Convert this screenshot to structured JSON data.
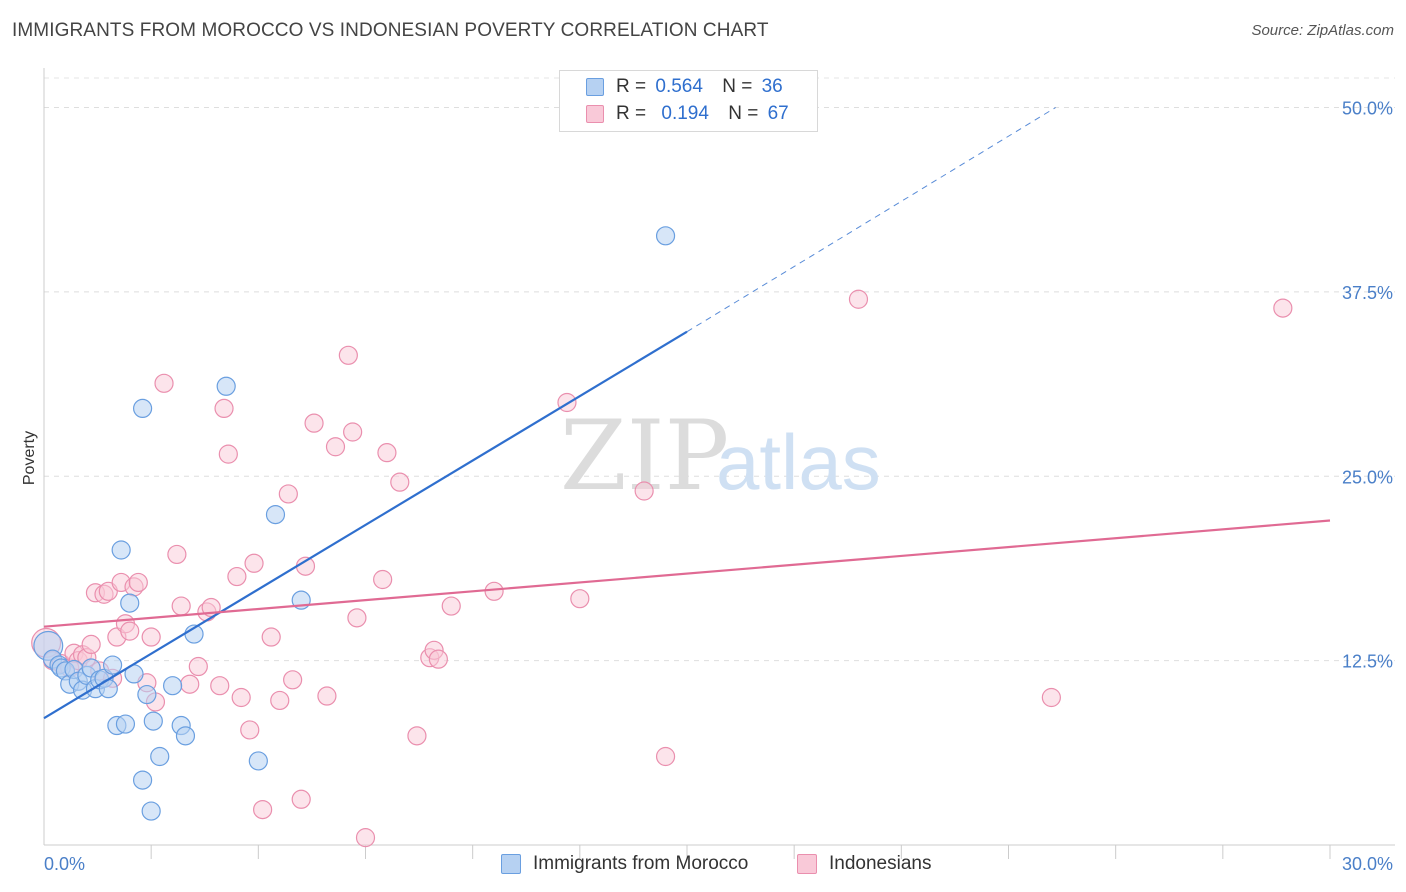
{
  "header": {
    "title": "IMMIGRANTS FROM MOROCCO VS INDONESIAN POVERTY CORRELATION CHART",
    "source": "Source: ZipAtlas.com"
  },
  "watermark": {
    "zip": "ZIP",
    "atlas": "atlas"
  },
  "legend": {
    "r_label": "R =",
    "n_label": "N =",
    "rows": [
      {
        "r": "0.564",
        "n": "36"
      },
      {
        "r": "0.194",
        "n": "67"
      }
    ]
  },
  "bottom_legend": {
    "items": [
      "Immigrants from Morocco",
      "Indonesians"
    ]
  },
  "colors": {
    "blue": "#2f6fce",
    "pink": "#e06a93",
    "blue_fill": "#b6d1f2",
    "pink_fill": "#f9c9d8",
    "tick": "#4a7fc8"
  },
  "chart_data": {
    "type": "scatter",
    "title": "IMMIGRANTS FROM MOROCCO VS INDONESIAN POVERTY CORRELATION CHART",
    "xlabel": "",
    "ylabel": "Poverty",
    "xlim": [
      0,
      30
    ],
    "ylim": [
      0,
      50
    ],
    "x_tick_labels": [
      {
        "value": 0,
        "label": "0.0%"
      },
      {
        "value": 30,
        "label": "30.0%"
      }
    ],
    "y_tick_labels": [
      {
        "value": 12.5,
        "label": "12.5%"
      },
      {
        "value": 25,
        "label": "25.0%"
      },
      {
        "value": 37.5,
        "label": "37.5%"
      },
      {
        "value": 50,
        "label": "50.0%"
      }
    ],
    "series": [
      {
        "name": "Immigrants from Morocco",
        "color": "#2f6fce",
        "R": 0.564,
        "N": 36,
        "trend": {
          "x0": 0,
          "y0": 8.6,
          "x1": 15,
          "y1": 34.8,
          "dash_to_x": 23.6,
          "dash_to_y": 50.0
        },
        "points": [
          [
            0.1,
            13.5,
            1.6
          ],
          [
            0.2,
            12.6,
            1
          ],
          [
            0.35,
            12.2,
            1
          ],
          [
            0.4,
            12.0,
            1
          ],
          [
            0.5,
            11.8,
            1
          ],
          [
            0.6,
            10.9,
            1
          ],
          [
            0.7,
            11.9,
            1
          ],
          [
            0.8,
            11.1,
            1
          ],
          [
            0.9,
            10.5,
            1
          ],
          [
            1.0,
            11.5,
            1
          ],
          [
            1.1,
            12.0,
            1
          ],
          [
            1.2,
            10.6,
            1
          ],
          [
            1.3,
            11.2,
            1
          ],
          [
            1.4,
            11.3,
            1
          ],
          [
            1.5,
            10.6,
            1
          ],
          [
            1.6,
            12.2,
            1
          ],
          [
            1.7,
            8.1,
            1
          ],
          [
            1.8,
            20.0,
            1
          ],
          [
            1.9,
            8.2,
            1
          ],
          [
            2.0,
            16.4,
            1
          ],
          [
            2.1,
            11.6,
            1
          ],
          [
            2.4,
            10.2,
            1
          ],
          [
            2.3,
            4.4,
            1
          ],
          [
            2.5,
            2.3,
            1
          ],
          [
            2.55,
            8.4,
            1
          ],
          [
            2.7,
            6.0,
            1
          ],
          [
            3.0,
            10.8,
            1
          ],
          [
            3.2,
            8.1,
            1
          ],
          [
            3.3,
            7.4,
            1
          ],
          [
            4.25,
            31.1,
            1
          ],
          [
            5.4,
            22.4,
            1
          ],
          [
            6.0,
            16.6,
            1
          ],
          [
            2.3,
            29.6,
            1
          ],
          [
            3.5,
            14.3,
            1
          ],
          [
            5.0,
            5.7,
            1
          ],
          [
            14.5,
            41.3,
            1
          ]
        ]
      },
      {
        "name": "Indonesians",
        "color": "#e06a93",
        "R": 0.194,
        "N": 67,
        "trend": {
          "x0": 0,
          "y0": 14.8,
          "x1": 30,
          "y1": 22.0
        },
        "points": [
          [
            0.05,
            13.7,
            1.6
          ],
          [
            0.2,
            12.5,
            1
          ],
          [
            0.4,
            12.3,
            1
          ],
          [
            0.6,
            12.0,
            1
          ],
          [
            0.7,
            13.0,
            1
          ],
          [
            0.8,
            12.5,
            1
          ],
          [
            0.9,
            12.9,
            1
          ],
          [
            1.0,
            12.7,
            1
          ],
          [
            1.1,
            13.6,
            1
          ],
          [
            1.2,
            17.1,
            1
          ],
          [
            1.3,
            11.8,
            1
          ],
          [
            1.4,
            17.0,
            1
          ],
          [
            1.5,
            17.2,
            1
          ],
          [
            1.6,
            11.3,
            1
          ],
          [
            1.7,
            14.1,
            1
          ],
          [
            1.8,
            17.8,
            1
          ],
          [
            1.9,
            15.0,
            1
          ],
          [
            2.0,
            14.5,
            1
          ],
          [
            2.1,
            17.5,
            1
          ],
          [
            2.2,
            17.8,
            1
          ],
          [
            2.4,
            11.0,
            1
          ],
          [
            2.5,
            14.1,
            1
          ],
          [
            2.6,
            9.7,
            1
          ],
          [
            2.8,
            31.3,
            1
          ],
          [
            3.1,
            19.7,
            1
          ],
          [
            3.2,
            16.2,
            1
          ],
          [
            3.4,
            10.9,
            1
          ],
          [
            3.6,
            12.1,
            1
          ],
          [
            3.8,
            15.8,
            1
          ],
          [
            3.9,
            16.1,
            1
          ],
          [
            4.1,
            10.8,
            1
          ],
          [
            4.2,
            29.6,
            1
          ],
          [
            4.3,
            26.5,
            1
          ],
          [
            4.5,
            18.2,
            1
          ],
          [
            4.6,
            10.0,
            1
          ],
          [
            4.8,
            7.8,
            1
          ],
          [
            4.9,
            19.1,
            1
          ],
          [
            5.1,
            2.4,
            1
          ],
          [
            5.3,
            14.1,
            1
          ],
          [
            5.5,
            9.8,
            1
          ],
          [
            5.7,
            23.8,
            1
          ],
          [
            5.8,
            11.2,
            1
          ],
          [
            6.0,
            3.1,
            1
          ],
          [
            6.1,
            18.9,
            1
          ],
          [
            6.3,
            28.6,
            1
          ],
          [
            6.6,
            10.1,
            1
          ],
          [
            6.8,
            27.0,
            1
          ],
          [
            7.1,
            33.2,
            1
          ],
          [
            7.2,
            28.0,
            1
          ],
          [
            7.3,
            15.4,
            1
          ],
          [
            7.5,
            0.5,
            1
          ],
          [
            7.9,
            18.0,
            1
          ],
          [
            8.0,
            26.6,
            1
          ],
          [
            8.3,
            24.6,
            1
          ],
          [
            8.7,
            7.4,
            1
          ],
          [
            9.0,
            12.7,
            1
          ],
          [
            9.1,
            13.2,
            1
          ],
          [
            9.2,
            12.6,
            1
          ],
          [
            9.5,
            16.2,
            1
          ],
          [
            10.5,
            17.2,
            1
          ],
          [
            12.2,
            30.0,
            1
          ],
          [
            12.5,
            16.7,
            1
          ],
          [
            14.0,
            24.0,
            1
          ],
          [
            14.5,
            6.0,
            1
          ],
          [
            19.0,
            37.0,
            1
          ],
          [
            23.5,
            10.0,
            1
          ],
          [
            28.9,
            36.4,
            1
          ]
        ]
      }
    ]
  }
}
